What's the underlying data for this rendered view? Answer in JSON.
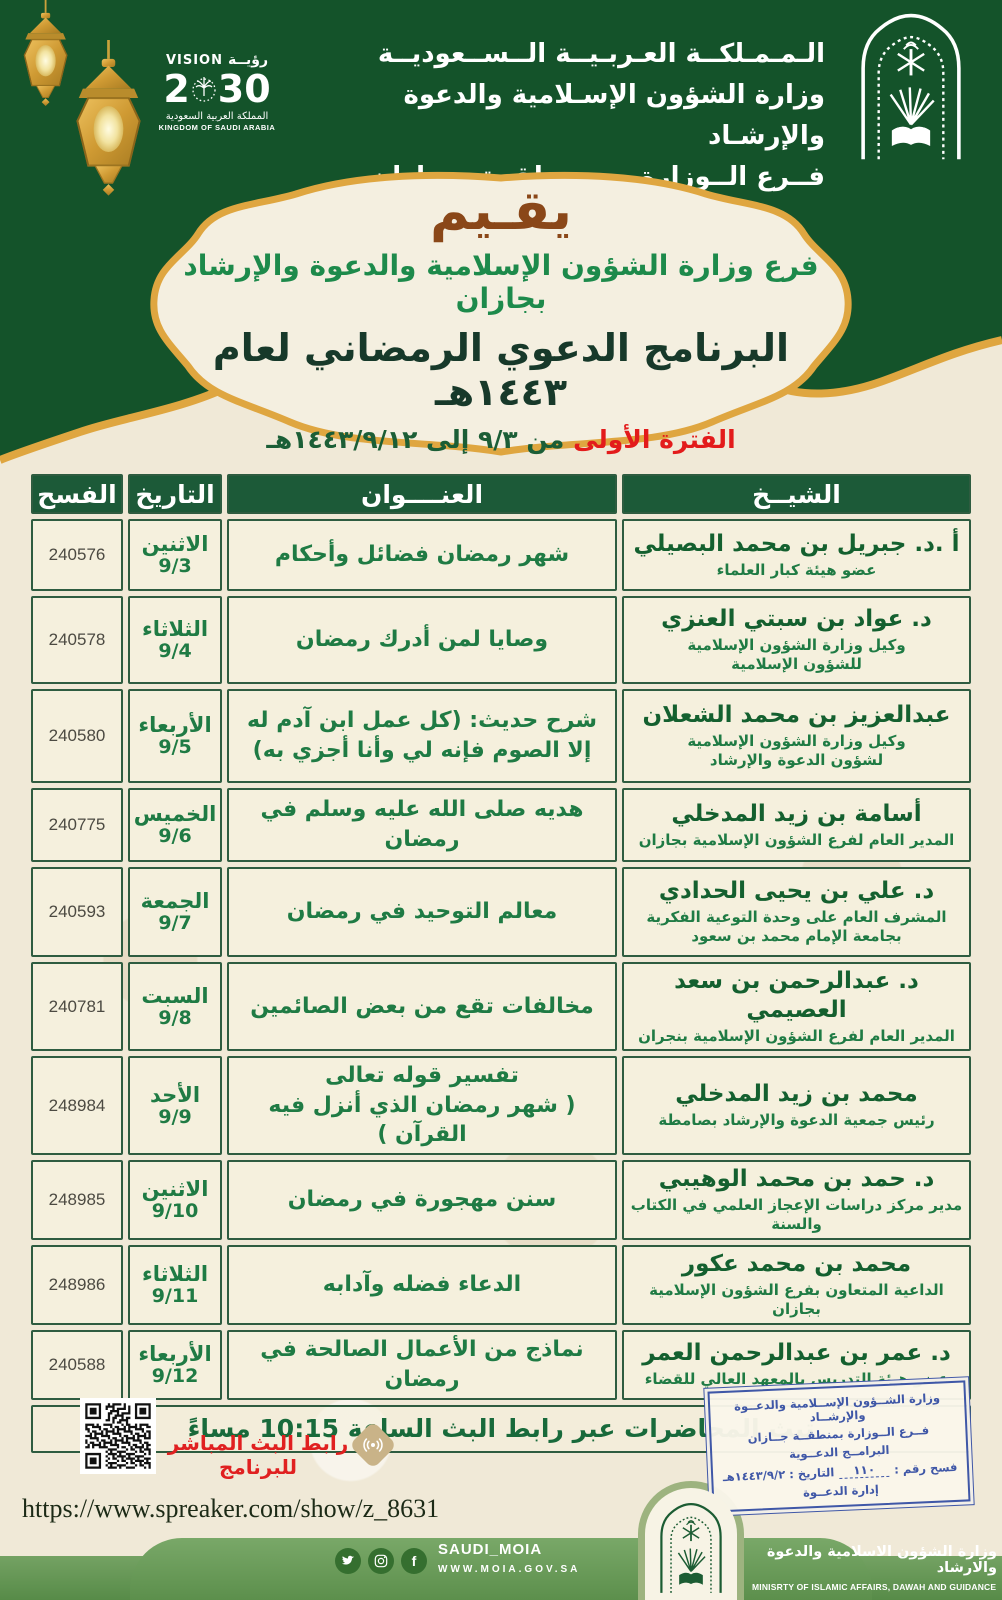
{
  "colors": {
    "green_dark": "#14532a",
    "gold": "#dfa640",
    "cream": "#f2ecdc",
    "table_green": "#1c5a38",
    "text_green": "#1f7b44",
    "red": "#e02020",
    "stamp_blue": "#3f57a7",
    "bar_green": "#699c59",
    "brown": "#8a4718"
  },
  "header": {
    "lines": {
      "country": "الـمـمـلكــة العـربـيــة الــســعوديــة",
      "ministry": "وزارة الشؤون الإسـلامية والدعوة والإرشـاد",
      "branch": "فــرع الــوزارة بــمــنطقــة جـــازان"
    },
    "vision": {
      "en": "VISION",
      "ar": "رؤيــة",
      "year_a": "2",
      "year_b": "30",
      "kingdom_ar": "المملكة العربية السعودية",
      "kingdom_en": "KINGDOM OF SAUDI ARABIA"
    }
  },
  "banner": {
    "organizes": "يقـيم",
    "host_line": "فرع وزارة الشؤون الإسلامية والدعوة والإرشاد بجازان",
    "program_title": "البرنامج الدعوي الرمضاني لعام ١٤٤٣هـ",
    "period_label": "الفترة الأولى",
    "period_text": "من ٩/٣ إلى ١٤٤٣/٩/١٢هـ"
  },
  "table": {
    "headers": {
      "permit": "الفسح",
      "date": "التاريخ",
      "title": "العنــــوان",
      "sheikh": "الشيــخ"
    },
    "rows": [
      {
        "permit": "240576",
        "day": "الاثنين",
        "date": "9/3",
        "title": "شهر رمضان فضائل وأحكام",
        "name": "أ .د. جبريل بن محمد البصيلي",
        "role": "عضو هيئة كبار العلماء"
      },
      {
        "permit": "240578",
        "day": "الثلاثاء",
        "date": "9/4",
        "title": "وصايا لمن أدرك رمضان",
        "name": "د. عواد بن سبتي العنزي",
        "role": "وكيل وزارة الشؤون الإسلامية\nللشؤون الإسلامية"
      },
      {
        "permit": "240580",
        "day": "الأربعاء",
        "date": "9/5",
        "title": "شرح حديث: (كل عمل ابن آدم له\nإلا الصوم فإنه لي وأنا أجزي به)",
        "name": "عبدالعزيز بن محمد الشعلان",
        "role": "وكيل وزارة الشؤون الإسلامية\nلشؤون الدعوة والإرشاد"
      },
      {
        "permit": "240775",
        "day": "الخميس",
        "date": "9/6",
        "title": "هديه صلى الله عليه وسلم في رمضان",
        "name": "أسامة بن زيد المدخلي",
        "role": "المدير العام لفرع الشؤون الإسلامية بجازان"
      },
      {
        "permit": "240593",
        "day": "الجمعة",
        "date": "9/7",
        "title": "معالم التوحيد في رمضان",
        "name": "د. علي بن يحيى الحدادي",
        "role": "المشرف العام على وحدة التوعية الفكرية\nبجامعة الإمام محمد بن سعود"
      },
      {
        "permit": "240781",
        "day": "السبت",
        "date": "9/8",
        "title": "مخالفات تقع من بعض الصائمين",
        "name": "د. عبدالرحمن بن سعد العصيمي",
        "role": "المدير العام لفرع الشؤون الإسلامية بنجران"
      },
      {
        "permit": "248984",
        "day": "الأحد",
        "date": "9/9",
        "title": "تفسير قوله تعالى\n( شهر رمضان الذي أنزل فيه القرآن )",
        "name": "محمد بن زيد المدخلي",
        "role": "رئيس جمعية الدعوة والإرشاد بصامطة"
      },
      {
        "permit": "248985",
        "day": "الاثنين",
        "date": "9/10",
        "title": "سنن مهجورة في رمضان",
        "name": "د. حمد بن محمد الوهيبي",
        "role": "مدير مركز دراسات الإعجاز العلمي في الكتاب والسنة"
      },
      {
        "permit": "248986",
        "day": "الثلاثاء",
        "date": "9/11",
        "title": "الدعاء فضله وآدابه",
        "name": "محمد بن محمد عكور",
        "role": "الداعية المتعاون بفرع الشؤون الإسلامية بجازان"
      },
      {
        "permit": "240588",
        "day": "الأربعاء",
        "date": "9/12",
        "title": "نماذج من الأعمال الصالحة في رمضان",
        "name": "د. عمر بن عبدالرحمن العمر",
        "role": "عضو هيئة التدريس بالمعهد العالي للقضاء"
      }
    ],
    "broadcast_note": "تبث المحاضرات عبر رابط البث الساعة 10:15 مساءً"
  },
  "footer": {
    "live_label": "رابط البث المباشر للبرنامج",
    "url": "https://www.spreaker.com/show/z_8631",
    "stamp": {
      "l1": "وزارة الشــؤون الإســلامية والدعــوة والإرشــاد",
      "l2": "فــرع الــوزارة بمنطقــة جــازان",
      "l3": "البرامــج الدعــوية",
      "l4a": "فسح رقم :",
      "l4num": "١١٠",
      "l4b": "التاريخ : ١٤٤٣/٩/٢هـ",
      "l5": "إدارة الدعــوة"
    },
    "bar": {
      "handle": "SAUDI_MOIA",
      "site": "WWW.MOIA.GOV.SA",
      "ministry_ar": "وزارة الشؤون الاسلامية والدعوة والارشاد",
      "ministry_en": "MINISRTY OF ISLAMIC AFFAIRS, DAWAH AND GUIDANCE"
    }
  }
}
